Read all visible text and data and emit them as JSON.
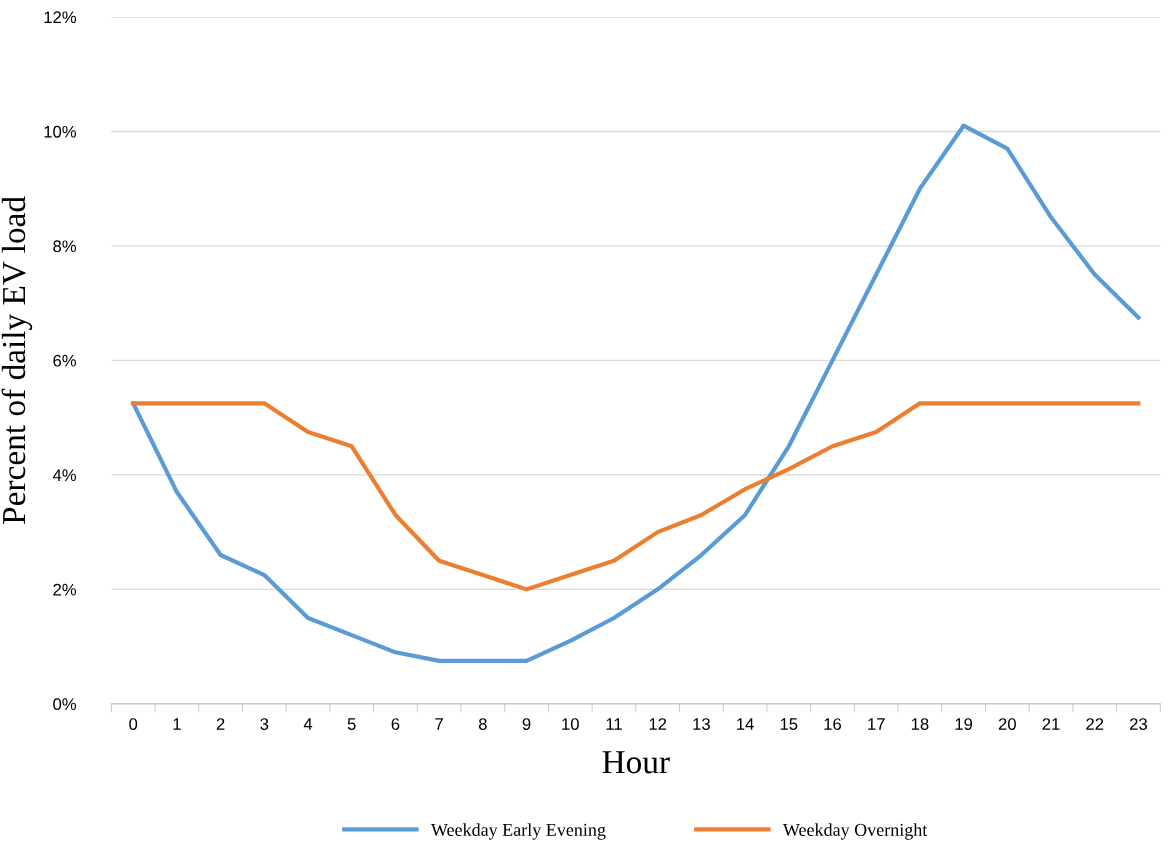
{
  "chart_data": {
    "type": "line",
    "xlabel": "Hour",
    "ylabel": "Percent of daily EV load",
    "categories": [
      "0",
      "1",
      "2",
      "3",
      "4",
      "5",
      "6",
      "7",
      "8",
      "9",
      "10",
      "11",
      "12",
      "13",
      "14",
      "15",
      "16",
      "17",
      "18",
      "19",
      "20",
      "21",
      "22",
      "23"
    ],
    "series": [
      {
        "name": "Weekday Early Evening",
        "color": "#5b9bd5",
        "values": [
          5.25,
          3.7,
          2.6,
          2.25,
          1.5,
          1.2,
          0.9,
          0.75,
          0.75,
          0.75,
          1.1,
          1.5,
          2.0,
          2.6,
          3.3,
          4.5,
          6.0,
          7.5,
          9.0,
          10.1,
          9.7,
          8.5,
          7.5,
          6.75
        ]
      },
      {
        "name": "Weekday Overnight",
        "color": "#ed7d31",
        "values": [
          5.25,
          5.25,
          5.25,
          5.25,
          4.75,
          4.5,
          3.3,
          2.5,
          2.25,
          2.0,
          2.25,
          2.5,
          3.0,
          3.3,
          3.75,
          4.1,
          4.5,
          4.75,
          5.25,
          5.25,
          5.25,
          5.25,
          5.25,
          5.25
        ]
      }
    ],
    "ylim": [
      0,
      12
    ],
    "yticks": [
      {
        "value": 0,
        "label": "0%"
      },
      {
        "value": 2,
        "label": "2%"
      },
      {
        "value": 4,
        "label": "4%"
      },
      {
        "value": 6,
        "label": "6%"
      },
      {
        "value": 8,
        "label": "8%"
      },
      {
        "value": 10,
        "label": "10%"
      },
      {
        "value": 12,
        "label": "12%"
      }
    ],
    "grid": "y",
    "legend": "bottom",
    "marker": "none",
    "line_style": "solid"
  }
}
